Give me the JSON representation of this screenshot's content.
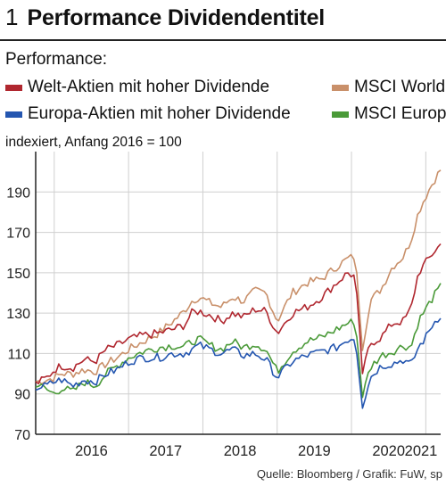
{
  "header": {
    "figure_number": "1",
    "title": "Performance Dividendentitel"
  },
  "legend": {
    "caption": "Performance:",
    "items": [
      {
        "label": "Welt-Aktien mit hoher Dividende",
        "color": "#b0272f"
      },
      {
        "label": "MSCI World",
        "color": "#c9906a"
      },
      {
        "label": "Europa-Aktien mit hoher Dividende",
        "color": "#2456b0"
      },
      {
        "label": "MSCI Europe",
        "color": "#4a9a38"
      }
    ]
  },
  "source": "Quelle: Bloomberg / Grafik: FuW, sp",
  "chart_data": {
    "type": "line",
    "ylabel": "indexiert, Anfang 2016 = 100",
    "ylim": [
      70,
      210
    ],
    "yticks": [
      70,
      90,
      110,
      130,
      150,
      170,
      190
    ],
    "xlim": [
      2015.75,
      2021.2
    ],
    "xticks": [
      "2016",
      "2017",
      "2018",
      "2019",
      "2020",
      "2021"
    ],
    "grid": true,
    "legend_position": "top",
    "series": [
      {
        "name": "Welt-Aktien mit hoher Dividende",
        "color": "#b0272f",
        "x": [
          2015.75,
          2015.9,
          2016.0,
          2016.1,
          2016.25,
          2016.4,
          2016.55,
          2016.7,
          2016.85,
          2017.0,
          2017.2,
          2017.4,
          2017.6,
          2017.75,
          2017.85,
          2017.95,
          2018.1,
          2018.25,
          2018.4,
          2018.55,
          2018.7,
          2018.85,
          2019.0,
          2019.2,
          2019.4,
          2019.6,
          2019.8,
          2019.95,
          2020.05,
          2020.15,
          2020.25,
          2020.4,
          2020.55,
          2020.7,
          2020.8,
          2020.9,
          2021.0,
          2021.1,
          2021.2
        ],
        "values": [
          95,
          98,
          102,
          104,
          103,
          107,
          106,
          112,
          114,
          117,
          119,
          120,
          122,
          124,
          130,
          131,
          129,
          126,
          130,
          128,
          132,
          131,
          120,
          130,
          133,
          138,
          145,
          150,
          148,
          100,
          115,
          118,
          125,
          126,
          132,
          150,
          155,
          160,
          164
        ]
      },
      {
        "name": "MSCI World",
        "color": "#c9906a",
        "x": [
          2015.75,
          2015.9,
          2016.0,
          2016.1,
          2016.25,
          2016.4,
          2016.55,
          2016.7,
          2016.85,
          2017.0,
          2017.2,
          2017.4,
          2017.6,
          2017.75,
          2017.85,
          2017.95,
          2018.1,
          2018.25,
          2018.4,
          2018.55,
          2018.7,
          2018.85,
          2019.0,
          2019.2,
          2019.4,
          2019.6,
          2019.8,
          2019.95,
          2020.05,
          2020.15,
          2020.25,
          2020.4,
          2020.55,
          2020.7,
          2020.8,
          2020.9,
          2021.0,
          2021.1,
          2021.2
        ],
        "values": [
          96,
          97,
          98,
          100,
          100,
          102,
          101,
          105,
          108,
          112,
          116,
          120,
          126,
          131,
          136,
          138,
          135,
          133,
          138,
          136,
          141,
          140,
          126,
          140,
          145,
          147,
          153,
          157,
          158,
          113,
          136,
          142,
          153,
          158,
          166,
          180,
          188,
          195,
          201
        ]
      },
      {
        "name": "Europa-Aktien mit hoher Dividende",
        "color": "#2456b0",
        "x": [
          2015.75,
          2015.9,
          2016.0,
          2016.1,
          2016.25,
          2016.4,
          2016.55,
          2016.7,
          2016.85,
          2017.0,
          2017.2,
          2017.4,
          2017.6,
          2017.75,
          2017.85,
          2017.95,
          2018.1,
          2018.25,
          2018.4,
          2018.55,
          2018.7,
          2018.85,
          2019.0,
          2019.2,
          2019.4,
          2019.6,
          2019.8,
          2019.95,
          2020.05,
          2020.15,
          2020.25,
          2020.4,
          2020.55,
          2020.7,
          2020.8,
          2020.9,
          2021.0,
          2021.1,
          2021.2
        ],
        "values": [
          93,
          94,
          96,
          97,
          94,
          97,
          96,
          100,
          102,
          106,
          108,
          108,
          110,
          110,
          112,
          114,
          112,
          110,
          112,
          109,
          110,
          107,
          98,
          106,
          109,
          111,
          113,
          117,
          118,
          84,
          98,
          104,
          105,
          107,
          104,
          113,
          118,
          125,
          129
        ]
      },
      {
        "name": "MSCI Europe",
        "color": "#4a9a38",
        "x": [
          2015.75,
          2015.9,
          2016.0,
          2016.1,
          2016.25,
          2016.4,
          2016.55,
          2016.7,
          2016.85,
          2017.0,
          2017.2,
          2017.4,
          2017.6,
          2017.75,
          2017.85,
          2017.95,
          2018.1,
          2018.25,
          2018.4,
          2018.55,
          2018.7,
          2018.85,
          2019.0,
          2019.2,
          2019.4,
          2019.6,
          2019.8,
          2019.95,
          2020.05,
          2020.15,
          2020.25,
          2020.4,
          2020.55,
          2020.7,
          2020.8,
          2020.9,
          2021.0,
          2021.1,
          2021.2
        ],
        "values": [
          95,
          92,
          90,
          93,
          91,
          96,
          94,
          100,
          104,
          108,
          111,
          113,
          114,
          113,
          116,
          117,
          114,
          112,
          116,
          113,
          115,
          112,
          101,
          111,
          116,
          118,
          122,
          125,
          126,
          89,
          103,
          109,
          111,
          114,
          113,
          126,
          132,
          138,
          143
        ]
      }
    ]
  }
}
